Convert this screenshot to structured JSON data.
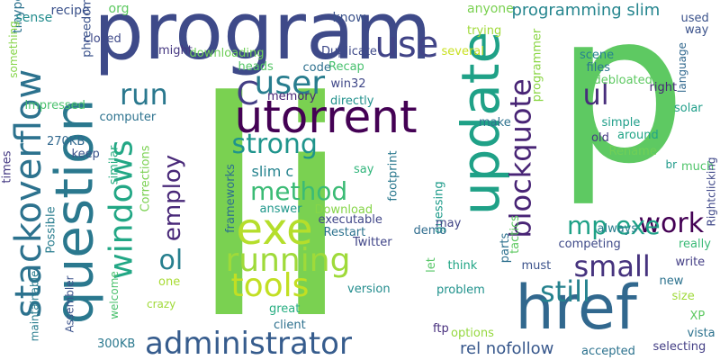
{
  "words": [
    {
      "text": "li",
      "color": "#7ad151"
    },
    {
      "text": "p",
      "color": "#5ec962"
    },
    {
      "text": "program",
      "color": "#3e4a89"
    },
    {
      "text": "question",
      "color": "#2a788e"
    },
    {
      "text": "update",
      "color": "#1fa187"
    },
    {
      "text": "href",
      "color": "#31688e"
    },
    {
      "text": "utorrent",
      "color": "#440154"
    },
    {
      "text": "stackoverflow",
      "color": "#2c728e"
    },
    {
      "text": "administrator",
      "color": "#365c8d"
    },
    {
      "text": "exe",
      "color": "#b5de2b"
    },
    {
      "text": "running",
      "color": "#9fda3a"
    },
    {
      "text": "windows",
      "color": "#22a785"
    },
    {
      "text": "blockquote",
      "color": "#482475"
    },
    {
      "text": "method",
      "color": "#3bbb75"
    },
    {
      "text": "tools",
      "color": "#c2df23"
    },
    {
      "text": "strong",
      "color": "#1f948c"
    },
    {
      "text": "user",
      "color": "#287d8e"
    },
    {
      "text": "work",
      "color": "#440154"
    },
    {
      "text": "employ",
      "color": "#482878"
    },
    {
      "text": "run",
      "color": "#2a788e"
    },
    {
      "text": "use",
      "color": "#414487"
    },
    {
      "text": "small",
      "color": "#46337e"
    },
    {
      "text": "still",
      "color": "#26828e"
    },
    {
      "text": "mp exe",
      "color": "#1fa187"
    },
    {
      "text": "ul",
      "color": "#472d7b"
    },
    {
      "text": "ol",
      "color": "#277f8e"
    },
    {
      "text": "C",
      "color": "#433e85"
    },
    {
      "text": "programming slim",
      "color": "#25858e"
    },
    {
      "text": "rel nofollow",
      "color": "#38588c"
    },
    {
      "text": "slim c",
      "color": "#25838e"
    },
    {
      "text": "recipe",
      "color": "#3b528b"
    },
    {
      "text": "org",
      "color": "#5ec962"
    },
    {
      "text": "know",
      "color": "#3b528b"
    },
    {
      "text": "anyone",
      "color": "#7ad151"
    },
    {
      "text": "tinype",
      "color": "#2c728e"
    },
    {
      "text": "sense",
      "color": "#228c8d"
    },
    {
      "text": "something",
      "color": "#86d549"
    },
    {
      "text": "closed",
      "color": "#3e4989"
    },
    {
      "text": "might",
      "color": "#453781"
    },
    {
      "text": "downloading",
      "color": "#6ece58"
    },
    {
      "text": "heads",
      "color": "#56c667"
    },
    {
      "text": "Duplicate",
      "color": "#3e4989"
    },
    {
      "text": "Recap",
      "color": "#48c16e"
    },
    {
      "text": "code",
      "color": "#2d708e"
    },
    {
      "text": "memory",
      "color": "#482475"
    },
    {
      "text": "win32",
      "color": "#3f4788"
    },
    {
      "text": "directly",
      "color": "#21918c"
    },
    {
      "text": "phreedom",
      "color": "#3b528b"
    },
    {
      "text": "impressed",
      "color": "#4ac16d"
    },
    {
      "text": "computer",
      "color": "#2c728e"
    },
    {
      "text": "270KB",
      "color": "#31688e"
    },
    {
      "text": "trying",
      "color": "#a0da39"
    },
    {
      "text": "several",
      "color": "#c8e020"
    },
    {
      "text": "programmer",
      "color": "#8bd646"
    },
    {
      "text": "used",
      "color": "#3b528b"
    },
    {
      "text": "way",
      "color": "#3b528b"
    },
    {
      "text": "scene",
      "color": "#25848e"
    },
    {
      "text": "files",
      "color": "#2a788e"
    },
    {
      "text": "debloated",
      "color": "#5ec962"
    },
    {
      "text": "language",
      "color": "#31688e"
    },
    {
      "text": "right",
      "color": "#482878"
    },
    {
      "text": "solar",
      "color": "#1f9e89"
    },
    {
      "text": "make",
      "color": "#2c728e"
    },
    {
      "text": "simple",
      "color": "#1f9e89"
    },
    {
      "text": "old",
      "color": "#443a83"
    },
    {
      "text": "around",
      "color": "#20a486"
    },
    {
      "text": "Rename",
      "color": "#70cf57"
    },
    {
      "text": "times",
      "color": "#443983"
    },
    {
      "text": "keep",
      "color": "#3b528b"
    },
    {
      "text": "similar",
      "color": "#27ad81"
    },
    {
      "text": "Corrections",
      "color": "#7ad151"
    },
    {
      "text": "frameworks",
      "color": "#2d708e"
    },
    {
      "text": "answer",
      "color": "#1f978b"
    },
    {
      "text": "Download",
      "color": "#86d549"
    },
    {
      "text": "executable",
      "color": "#404688"
    },
    {
      "text": "say",
      "color": "#31b57b"
    },
    {
      "text": "footprint",
      "color": "#2a788e"
    },
    {
      "text": "guessing",
      "color": "#1e9b8a"
    },
    {
      "text": "may",
      "color": "#414487"
    },
    {
      "text": "Possible",
      "color": "#287c8e"
    },
    {
      "text": "Restart",
      "color": "#2c728e"
    },
    {
      "text": "Twitter",
      "color": "#404588"
    },
    {
      "text": "demo",
      "color": "#2f6c8e"
    },
    {
      "text": "parts",
      "color": "#2d708e"
    },
    {
      "text": "tactics",
      "color": "#5ec962"
    },
    {
      "text": "br",
      "color": "#1f9a8a"
    },
    {
      "text": "much",
      "color": "#50c46a"
    },
    {
      "text": "Rightclicking",
      "color": "#3f4889"
    },
    {
      "text": "always",
      "color": "#287d8e"
    },
    {
      "text": "competing",
      "color": "#3e4a89"
    },
    {
      "text": "really",
      "color": "#3aba76"
    },
    {
      "text": "let",
      "color": "#56c667"
    },
    {
      "text": "think",
      "color": "#21a585"
    },
    {
      "text": "must",
      "color": "#3b528b"
    },
    {
      "text": "write",
      "color": "#433e85"
    },
    {
      "text": "new",
      "color": "#2c728e"
    },
    {
      "text": "size",
      "color": "#9fda3a"
    },
    {
      "text": "welcome",
      "color": "#4ac16d"
    },
    {
      "text": "one",
      "color": "#a8db34"
    },
    {
      "text": "crazy",
      "color": "#a0da39"
    },
    {
      "text": "version",
      "color": "#228c8d"
    },
    {
      "text": "problem",
      "color": "#20928c"
    },
    {
      "text": "great",
      "color": "#26ad81"
    },
    {
      "text": "client",
      "color": "#2d708e"
    },
    {
      "text": "maintainable",
      "color": "#287c8e"
    },
    {
      "text": "Assembler",
      "color": "#3b528b"
    },
    {
      "text": "300KB",
      "color": "#2a788e"
    },
    {
      "text": "ftp",
      "color": "#472f7d"
    },
    {
      "text": "options",
      "color": "#95d840"
    },
    {
      "text": "accepted",
      "color": "#2c728e"
    },
    {
      "text": "selecting",
      "color": "#433e85"
    },
    {
      "text": "XP",
      "color": "#5ec962"
    },
    {
      "text": "vista",
      "color": "#2c728e"
    }
  ]
}
